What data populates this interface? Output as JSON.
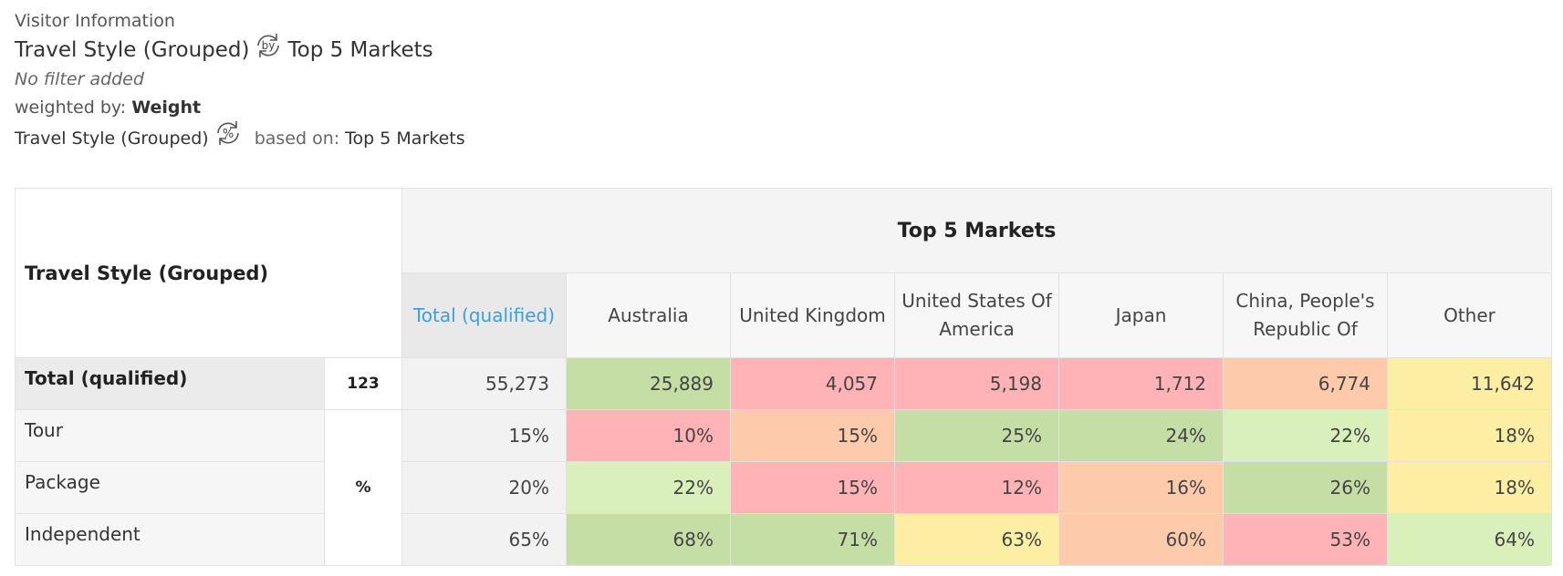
{
  "header": {
    "section": "Visitor Information",
    "row_variable": "Travel Style (Grouped)",
    "by_badge": "by",
    "column_variable": "Top 5 Markets",
    "filter": "No filter added",
    "weighted_prefix": "weighted by:",
    "weighted_value": "Weight",
    "pct_variable": "Travel Style (Grouped)",
    "pct_badge": "%",
    "based_on_prefix": "based on:",
    "based_on_value": "Top 5 Markets"
  },
  "table": {
    "row_header": "Travel Style (Grouped)",
    "column_group": "Top 5 Markets",
    "columns": [
      {
        "label": "Total (qualified)"
      },
      {
        "label": "Australia"
      },
      {
        "label": "United Kingdom"
      },
      {
        "label": "United States Of America"
      },
      {
        "label": "Japan"
      },
      {
        "label": "China, People's Republic Of"
      },
      {
        "label": "Other"
      }
    ],
    "total_row": {
      "label": "Total (qualified)",
      "base": "123",
      "values": [
        "55,273",
        "25,889",
        "4,057",
        "5,198",
        "1,712",
        "6,774",
        "11,642"
      ],
      "colors": [
        "total",
        "green",
        "red",
        "red",
        "red",
        "orange",
        "yellow"
      ]
    },
    "pct_unit": "%",
    "rows": [
      {
        "label": "Tour",
        "values": [
          "15%",
          "10%",
          "15%",
          "25%",
          "24%",
          "22%",
          "18%"
        ],
        "colors": [
          "total",
          "red",
          "orange",
          "green",
          "green",
          "lgreen",
          "yellow"
        ]
      },
      {
        "label": "Package",
        "values": [
          "20%",
          "22%",
          "15%",
          "12%",
          "16%",
          "26%",
          "18%"
        ],
        "colors": [
          "total",
          "lgreen",
          "red",
          "red",
          "orange",
          "green",
          "yellow"
        ]
      },
      {
        "label": "Independent",
        "values": [
          "65%",
          "68%",
          "71%",
          "63%",
          "60%",
          "53%",
          "64%"
        ],
        "colors": [
          "total",
          "green",
          "green",
          "yellow",
          "orange",
          "red",
          "lgreen"
        ]
      }
    ]
  },
  "colors": {
    "green": "#c5dea6",
    "light_green": "#d9f0bb",
    "red": "#ffb3b6",
    "orange": "#fdcbac",
    "yellow": "#fcefa4",
    "accent_link": "#3aa0dc"
  }
}
